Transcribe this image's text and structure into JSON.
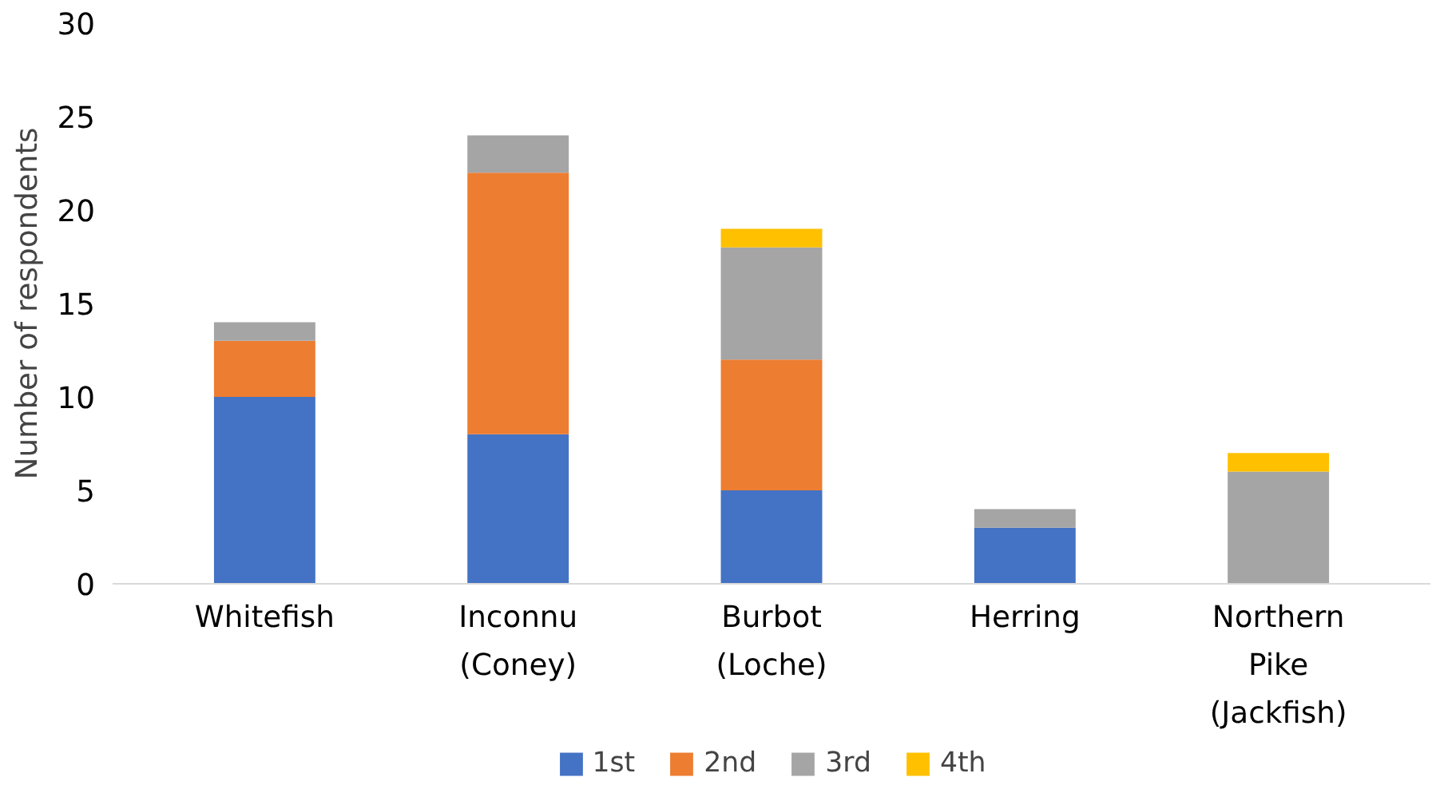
{
  "chart_data": {
    "type": "bar",
    "stacked": true,
    "ylabel": "Number of respondents",
    "categories": [
      "Whitefish",
      "Inconnu\n(Coney)",
      "Burbot\n(Loche)",
      "Herring",
      "Northern\nPike\n(Jackfish)"
    ],
    "series": [
      {
        "name": "1st",
        "color": "#4472c4",
        "values": [
          10,
          8,
          5,
          3,
          0
        ]
      },
      {
        "name": "2nd",
        "color": "#ed7d31",
        "values": [
          3,
          14,
          7,
          0,
          0
        ]
      },
      {
        "name": "3rd",
        "color": "#a5a5a5",
        "values": [
          1,
          2,
          6,
          1,
          6
        ]
      },
      {
        "name": "4th",
        "color": "#ffc000",
        "values": [
          0,
          0,
          1,
          0,
          1
        ]
      }
    ],
    "ylim": [
      0,
      30
    ],
    "yticks": [
      0,
      5,
      10,
      15,
      20,
      25,
      30
    ],
    "grid": false,
    "legend": "bottom"
  }
}
